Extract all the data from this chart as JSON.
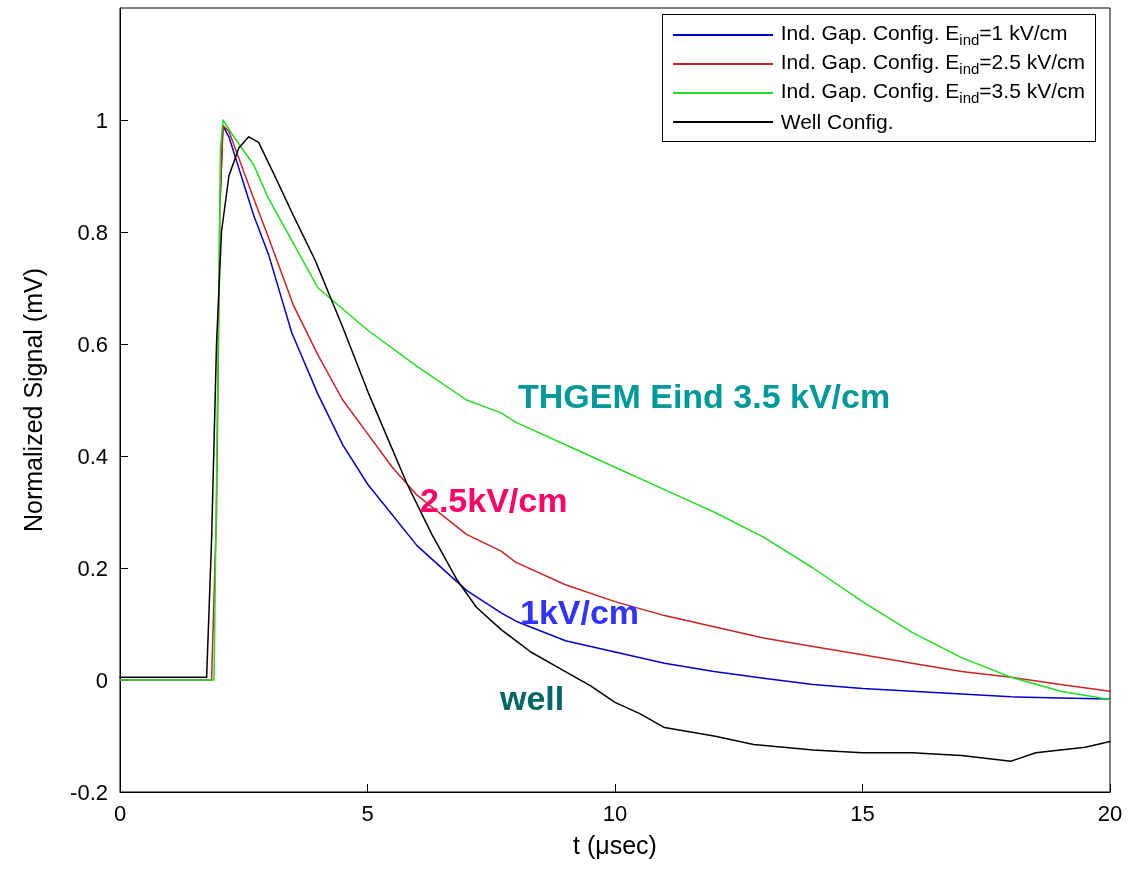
{
  "chart_data": {
    "type": "line",
    "xlabel": "t (μsec)",
    "ylabel": "Normalized Signal (mV)",
    "xlim": [
      0,
      20
    ],
    "xticks": [
      0,
      5,
      10,
      15,
      20
    ],
    "ylim": [
      -0.2,
      1.2
    ],
    "yticks": [
      -0.2,
      0,
      0.2,
      0.4,
      0.6,
      0.8,
      1
    ],
    "grid": false,
    "legend": "top right",
    "marker": "none",
    "line_style": "solid",
    "series": [
      {
        "name": "Ind. Gap. Config. E$_{ind}$=1 kV/cm",
        "color": "#0000cc",
        "x": [
          2.02,
          2.08,
          2.2,
          2.7,
          3,
          3.47,
          4,
          4.5,
          5,
          6,
          7,
          7.7,
          8,
          9,
          10,
          11,
          12,
          13,
          14,
          15,
          16,
          17,
          18,
          19,
          20
        ],
        "values": [
          0.85,
          0.99,
          0.97,
          0.83,
          0.76,
          0.62,
          0.51,
          0.42,
          0.35,
          0.24,
          0.16,
          0.12,
          0.105,
          0.07,
          0.05,
          0.03,
          0.015,
          0.003,
          -0.008,
          -0.015,
          -0.02,
          -0.025,
          -0.03,
          -0.032,
          -0.034
        ]
      },
      {
        "name": "Ind. Gap. Config. E$_{ind}$=2.5 kV/cm",
        "color": "#cc2222",
        "x": [
          0,
          1.85,
          1.95,
          2.02,
          2.08,
          2.2,
          2.7,
          3,
          3.5,
          4,
          4.5,
          5,
          5.5,
          6,
          7,
          7.7,
          8,
          9,
          10,
          11,
          12,
          13,
          14,
          15,
          16,
          17,
          18,
          19,
          20
        ],
        "values": [
          0,
          0,
          0.3,
          0.85,
          0.99,
          0.98,
          0.86,
          0.79,
          0.67,
          0.58,
          0.5,
          0.44,
          0.38,
          0.33,
          0.26,
          0.23,
          0.21,
          0.17,
          0.14,
          0.115,
          0.095,
          0.075,
          0.06,
          0.045,
          0.03,
          0.015,
          0.005,
          -0.008,
          -0.02
        ]
      },
      {
        "name": "Ind. Gap. Config. E$_{ind}$=3.5 kV/cm",
        "color": "#22dd22",
        "x": [
          0,
          1.9,
          1.97,
          2.03,
          2.08,
          2.3,
          2.7,
          3,
          3.5,
          4,
          5,
          6,
          7,
          7.7,
          8,
          9,
          10,
          11,
          12,
          13,
          14,
          15,
          16,
          17,
          18,
          19,
          20
        ],
        "values": [
          0,
          0,
          0.5,
          0.95,
          1,
          0.97,
          0.92,
          0.86,
          0.78,
          0.7,
          0.625,
          0.56,
          0.5,
          0.477,
          0.46,
          0.42,
          0.38,
          0.34,
          0.3,
          0.255,
          0.2,
          0.14,
          0.085,
          0.04,
          0.005,
          -0.02,
          -0.035
        ]
      },
      {
        "name": "Well Config.",
        "color": "#000000",
        "x": [
          0,
          0.5,
          1,
          1.75,
          1.85,
          1.95,
          2.05,
          2.2,
          2.4,
          2.6,
          2.8,
          3.1,
          3.5,
          3.94,
          4.5,
          5.03,
          5.8,
          6.3,
          6.8,
          7.2,
          7.7,
          8.3,
          8.9,
          9.5,
          10,
          10.5,
          11,
          12,
          12.8,
          14,
          15,
          16,
          17,
          18,
          18.5,
          19,
          19.5,
          20
        ],
        "values": [
          0.005,
          0.005,
          0.005,
          0.005,
          0.25,
          0.6,
          0.8,
          0.9,
          0.95,
          0.97,
          0.96,
          0.905,
          0.83,
          0.75,
          0.63,
          0.51,
          0.35,
          0.26,
          0.18,
          0.13,
          0.09,
          0.05,
          0.02,
          -0.01,
          -0.04,
          -0.06,
          -0.085,
          -0.1,
          -0.115,
          -0.125,
          -0.13,
          -0.13,
          -0.135,
          -0.145,
          -0.13,
          -0.125,
          -0.12,
          -0.11
        ]
      }
    ],
    "annotations": [
      "THGEM Eind 3.5 kV/cm",
      "2.5kV/cm",
      "1kV/cm",
      "well"
    ]
  }
}
